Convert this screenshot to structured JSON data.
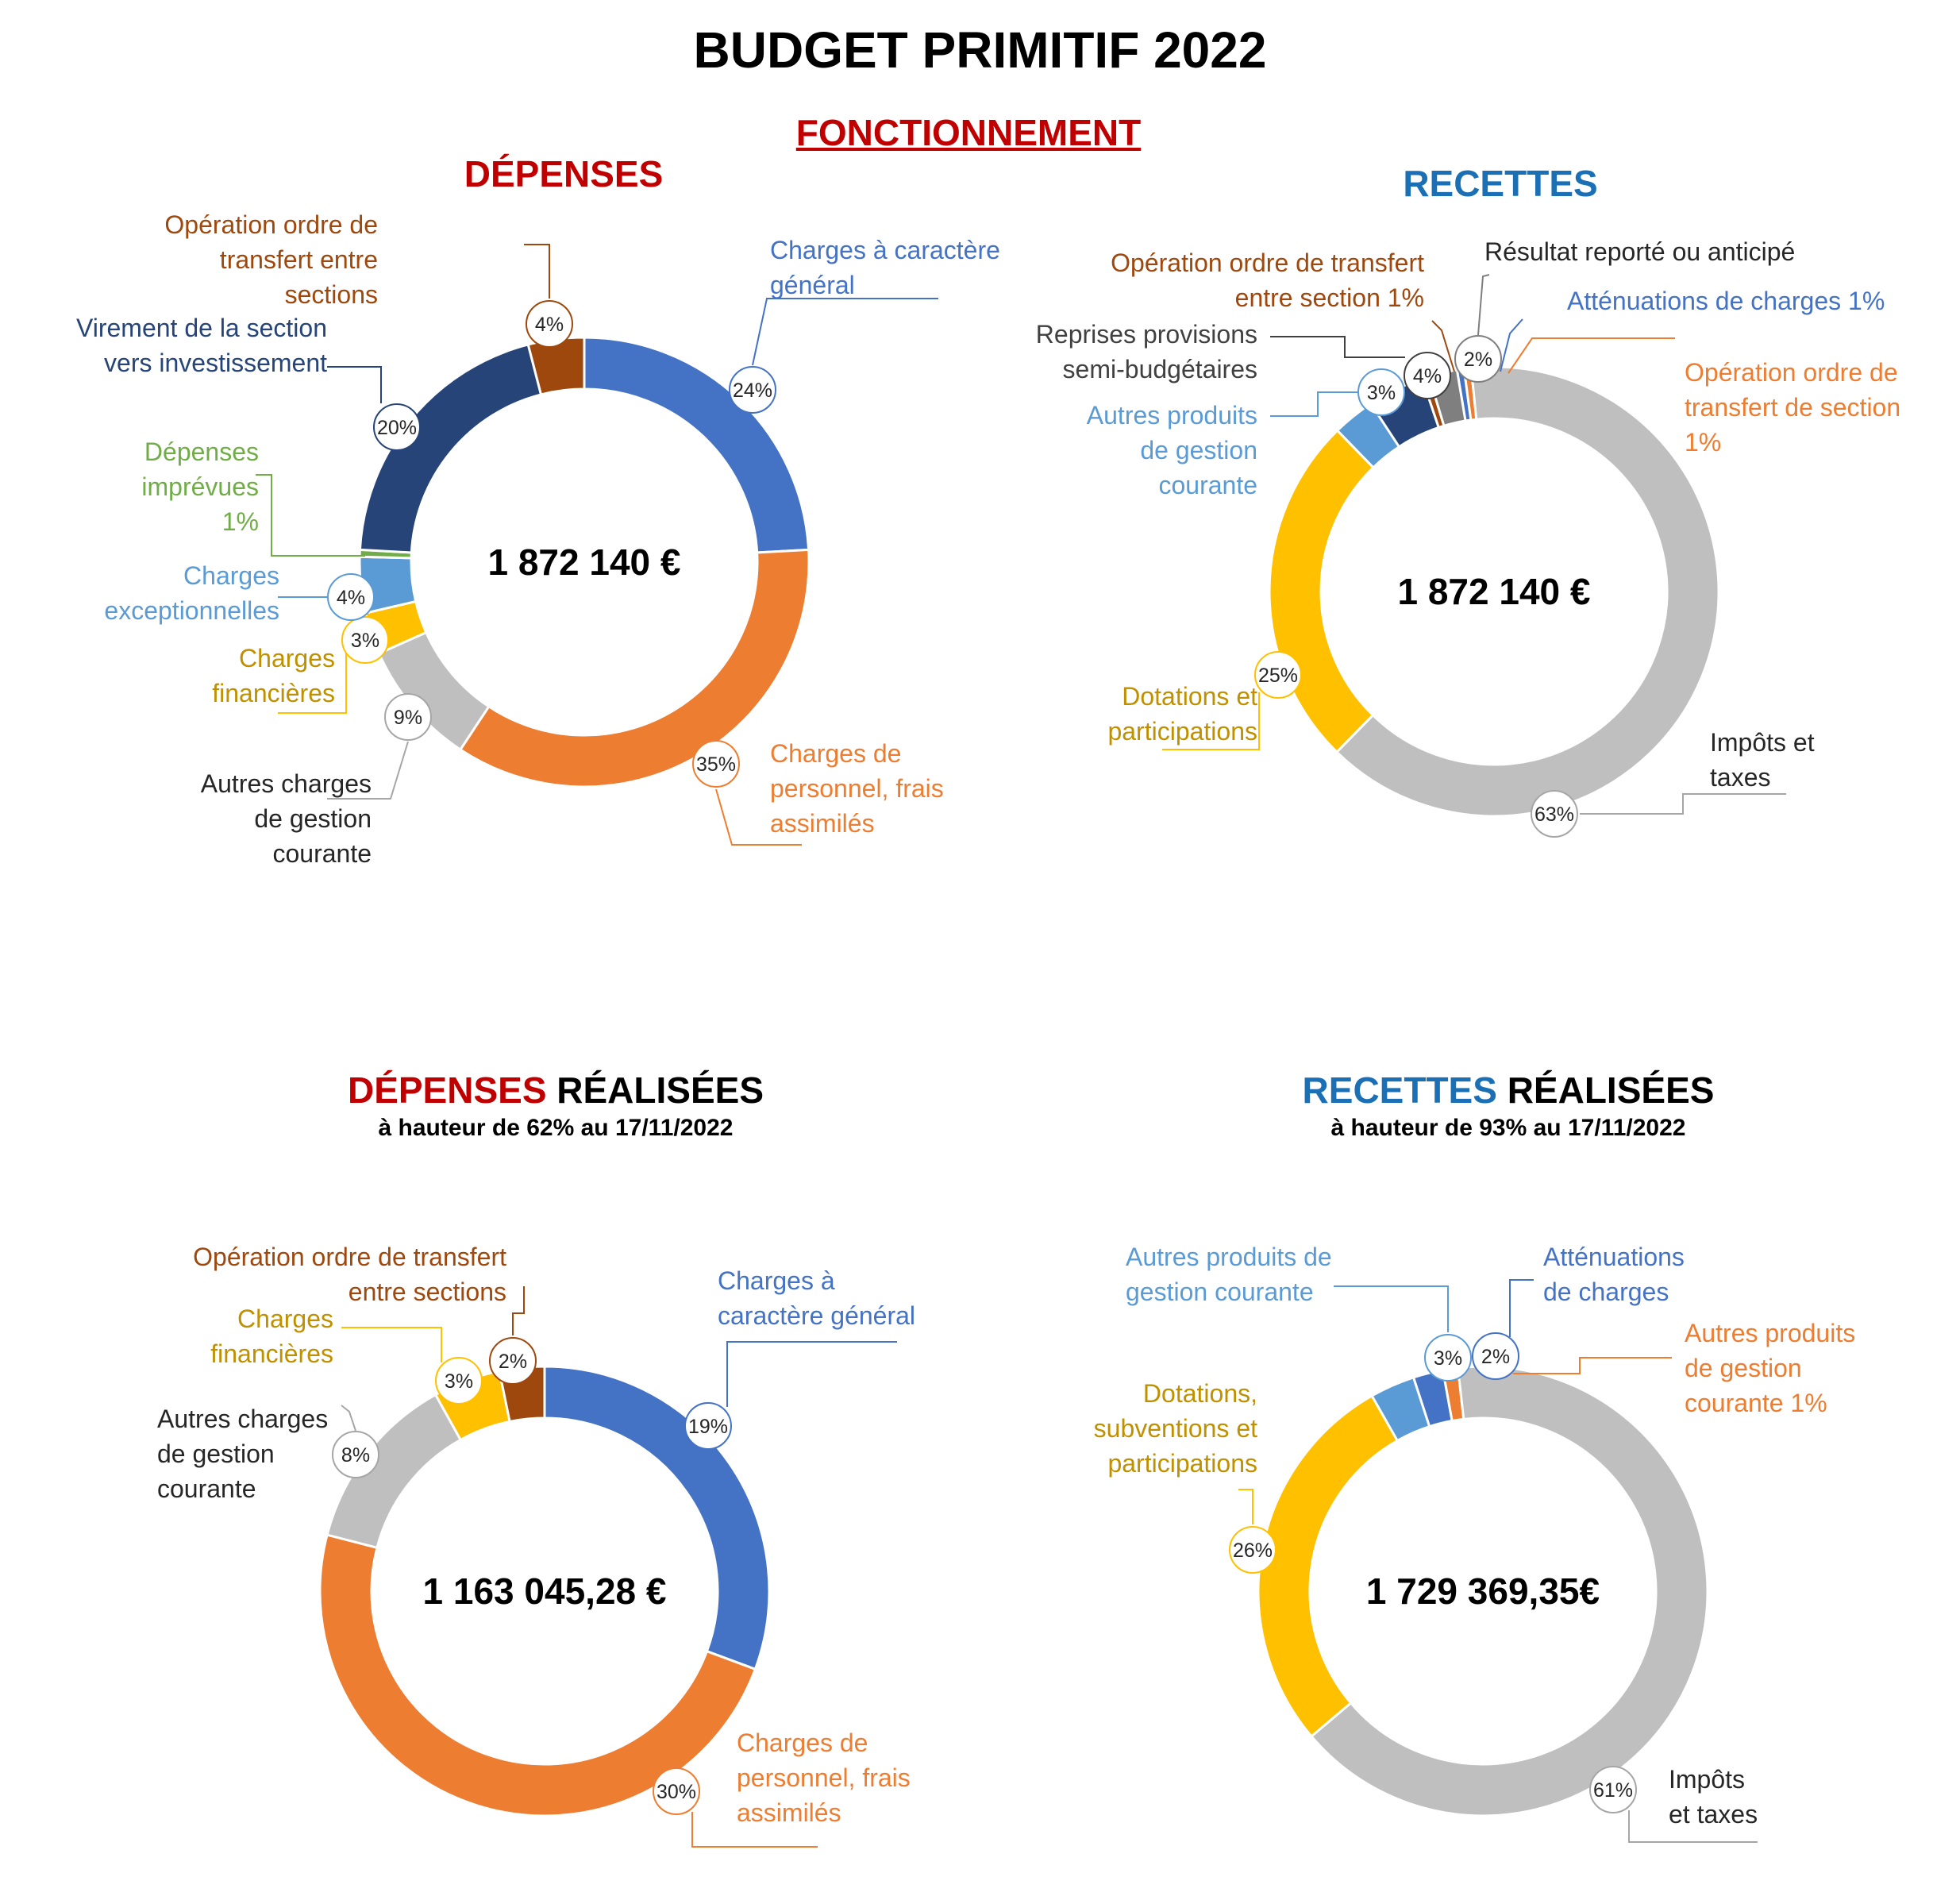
{
  "page": {
    "title": "BUDGET PRIMITIF 2022",
    "section": "FONCTIONNEMENT"
  },
  "charts_text": {
    "depenses": {
      "title": "DÉPENSES"
    },
    "recettes": {
      "title": "RECETTES"
    },
    "depenses_real": {
      "title_colored": "DÉPENSES",
      "title_rest": " RÉALISÉES",
      "subtitle": "à hauteur de 62% au 17/11/2022"
    },
    "recettes_real": {
      "title_colored": "RECETTES",
      "title_rest": " RÉALISÉES",
      "subtitle": "à hauteur de 93% au 17/11/2022"
    }
  },
  "chart_data": [
    {
      "id": "depenses",
      "type": "pie",
      "title": "DÉPENSES",
      "center_label": "1 872 140 €",
      "unit": "%",
      "slices": [
        {
          "label": "Charges à caractère général",
          "value": 24,
          "display": "24%",
          "color": "#4472c4",
          "label_color": "#4472c4",
          "line_color": "#4472c4"
        },
        {
          "label": "Charges de personnel, frais assimilés",
          "value": 35,
          "display": "35%",
          "color": "#ed7d31",
          "label_color": "#ed7d31",
          "line_color": "#ed7d31"
        },
        {
          "label": "Autres charges de gestion courante",
          "value": 9,
          "display": "9%",
          "color": "#bfbfbf",
          "label_color": "#262626",
          "line_color": "#a6a6a6"
        },
        {
          "label": "Charges financières",
          "value": 3,
          "display": "3%",
          "color": "#ffc000",
          "label_color": "#bf9000",
          "line_color": "#ffc000"
        },
        {
          "label": "Charges exceptionnelles",
          "value": 4,
          "display": "4%",
          "color": "#5b9bd5",
          "label_color": "#5b9bd5",
          "line_color": "#5b9bd5"
        },
        {
          "label": "Dépenses imprévues 1%",
          "value": 0.5,
          "display": "",
          "color": "#70ad47",
          "label_color": "#70ad47",
          "line_color": "#70ad47"
        },
        {
          "label": "Virement de la section vers investissement",
          "value": 20,
          "display": "20%",
          "color": "#264478",
          "label_color": "#264478",
          "line_color": "#264478"
        },
        {
          "label": "Opération ordre de transfert entre sections",
          "value": 4,
          "display": "4%",
          "color": "#9e480e",
          "label_color": "#9e480e",
          "line_color": "#9e480e"
        }
      ]
    },
    {
      "id": "recettes",
      "type": "pie",
      "title": "RECETTES",
      "center_label": "1 872 140 €",
      "unit": "%",
      "slices": [
        {
          "label": "Atténuations de charges 1%",
          "value": 0.5,
          "display": "",
          "color": "#4472c4",
          "label_color": "#4472c4",
          "line_color": "#4472c4"
        },
        {
          "label": "Opération ordre de transfert de section 1%",
          "value": 0.5,
          "display": "",
          "color": "#ed7d31",
          "label_color": "#ed7d31",
          "line_color": "#ed7d31"
        },
        {
          "label": "Impôts et taxes",
          "value": 63,
          "display": "63%",
          "color": "#bfbfbf",
          "label_color": "#262626",
          "line_color": "#a6a6a6"
        },
        {
          "label": "Dotations et participations",
          "value": 25,
          "display": "25%",
          "color": "#ffc000",
          "label_color": "#bf9000",
          "line_color": "#ffc000"
        },
        {
          "label": "Autres produits de gestion courante",
          "value": 3,
          "display": "3%",
          "color": "#5b9bd5",
          "label_color": "#5b9bd5",
          "line_color": "#5b9bd5"
        },
        {
          "label": "Reprises provisions semi-budgétaires",
          "value": 4,
          "display": "4%",
          "color": "#264478",
          "label_color": "#404040",
          "line_color": "#404040"
        },
        {
          "label": "Opération ordre de transfert entre section 1%",
          "value": 0.5,
          "display": "",
          "color": "#9e480e",
          "label_color": "#9e480e",
          "line_color": "#9e480e"
        },
        {
          "label": "Résultat reporté ou anticipé",
          "value": 2,
          "display": "2%",
          "color": "#7f7f7f",
          "label_color": "#262626",
          "line_color": "#7f7f7f"
        }
      ]
    },
    {
      "id": "depenses_real",
      "type": "pie",
      "title": "DÉPENSES RÉALISÉES",
      "subtitle": "à hauteur de 62% au 17/11/2022",
      "center_label": "1 163 045,28 €",
      "unit": "%",
      "slices": [
        {
          "label": "Charges à caractère général",
          "value": 19,
          "display": "19%",
          "color": "#4472c4",
          "label_color": "#4472c4",
          "line_color": "#4472c4"
        },
        {
          "label": "Charges de personnel, frais assimilés",
          "value": 30,
          "display": "30%",
          "color": "#ed7d31",
          "label_color": "#ed7d31",
          "line_color": "#ed7d31"
        },
        {
          "label": "Autres charges de gestion courante",
          "value": 8,
          "display": "8%",
          "color": "#bfbfbf",
          "label_color": "#262626",
          "line_color": "#a6a6a6"
        },
        {
          "label": "Charges financières",
          "value": 3,
          "display": "3%",
          "color": "#ffc000",
          "label_color": "#bf9000",
          "line_color": "#ffc000"
        },
        {
          "label": "Opération ordre de transfert entre sections",
          "value": 2,
          "display": "2%",
          "color": "#9e480e",
          "label_color": "#9e480e",
          "line_color": "#9e480e"
        }
      ]
    },
    {
      "id": "recettes_real",
      "type": "pie",
      "title": "RECETTES RÉALISÉES",
      "subtitle": "à hauteur de 93% au 17/11/2022",
      "center_label": "1 729 369,35€",
      "unit": "%",
      "slices": [
        {
          "label": "Atténuations de charges",
          "value": 2,
          "display": "2%",
          "color": "#4472c4",
          "label_color": "#4472c4",
          "line_color": "#4472c4"
        },
        {
          "label": "Autres produits de gestion courante 1%",
          "value": 1,
          "display": "",
          "color": "#ed7d31",
          "label_color": "#ed7d31",
          "line_color": "#ed7d31"
        },
        {
          "label": "Impôts et taxes",
          "value": 61,
          "display": "61%",
          "color": "#bfbfbf",
          "label_color": "#262626",
          "line_color": "#a6a6a6"
        },
        {
          "label": "Dotations, subventions et participations",
          "value": 26,
          "display": "26%",
          "color": "#ffc000",
          "label_color": "#bf9000",
          "line_color": "#ffc000"
        },
        {
          "label": "Autres produits de gestion courante",
          "value": 3,
          "display": "3%",
          "color": "#5b9bd5",
          "label_color": "#5b9bd5",
          "line_color": "#5b9bd5"
        }
      ]
    }
  ]
}
